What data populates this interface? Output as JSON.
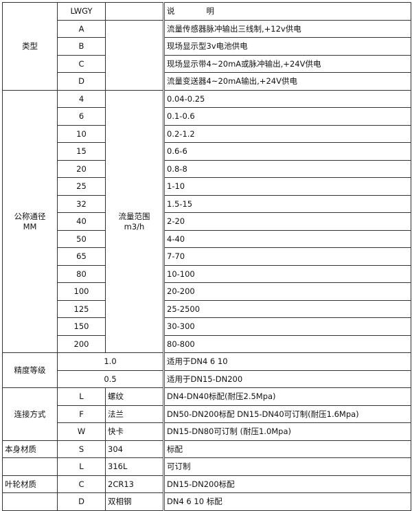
{
  "header": {
    "code": "LWGY",
    "desc": "说　　　　明"
  },
  "type": {
    "label": "类型",
    "rows": [
      {
        "code": "A",
        "desc": "流量传感器脉冲输出三线制,+12v供电"
      },
      {
        "code": "B",
        "desc": "现场显示型3v电池供电"
      },
      {
        "code": "C",
        "desc": "现场显示带4~20mA或脉冲输出,+24V供电"
      },
      {
        "code": "D",
        "desc": "流量变送器4~20mA输出,+24V供电"
      }
    ]
  },
  "diameter": {
    "label": "公称通径",
    "unit": "MM",
    "flow_label": "流量范围",
    "flow_unit": "m3/h",
    "rows": [
      {
        "dn": "4",
        "range": "0.04-0.25"
      },
      {
        "dn": "6",
        "range": "0.1-0.6"
      },
      {
        "dn": "10",
        "range": "0.2-1.2"
      },
      {
        "dn": "15",
        "range": "0.6-6"
      },
      {
        "dn": "20",
        "range": "0.8-8"
      },
      {
        "dn": "25",
        "range": "1-10"
      },
      {
        "dn": "32",
        "range": "1.5-15"
      },
      {
        "dn": "40",
        "range": "2-20"
      },
      {
        "dn": "50",
        "range": "4-40"
      },
      {
        "dn": "65",
        "range": "7-70"
      },
      {
        "dn": "80",
        "range": "10-100"
      },
      {
        "dn": "100",
        "range": "20-200"
      },
      {
        "dn": "125",
        "range": "25-2500"
      },
      {
        "dn": "150",
        "range": "30-300"
      },
      {
        "dn": "200",
        "range": "80-800"
      }
    ]
  },
  "accuracy": {
    "label": "精度等级",
    "rows": [
      {
        "grade": "1.0",
        "desc": "适用于DN4  6  10"
      },
      {
        "grade": "0.5",
        "desc": "适用于DN15-DN200"
      }
    ]
  },
  "connection": {
    "label": "连接方式",
    "rows": [
      {
        "code": "L",
        "name": "螺纹",
        "desc": "DN4-DN40标配(耐压2.5Mpa)"
      },
      {
        "code": "F",
        "name": "法兰",
        "desc": "DN50-DN200标配 DN15-DN40可订制(耐压1.6Mpa)"
      },
      {
        "code": "W",
        "name": "快卡",
        "desc": "DN15-DN80可订制 (耐压1.0Mpa)"
      }
    ]
  },
  "body_material": {
    "label": "本身材质",
    "rows": [
      {
        "code": "S",
        "name": "304",
        "desc": "标配"
      },
      {
        "code": "L",
        "name": "316L",
        "desc": "可订制"
      }
    ]
  },
  "impeller_material": {
    "label": "叶轮材质",
    "rows": [
      {
        "code": "C",
        "name": "2CR13",
        "desc": "DN15-DN200标配"
      },
      {
        "code": "D",
        "name": "双相钢",
        "desc": "DN4 6 10 标配"
      }
    ]
  }
}
